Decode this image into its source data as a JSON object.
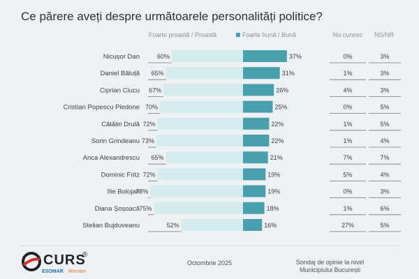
{
  "page": {
    "title": "Ce părere aveți despre următoarele personalități politice?",
    "legend_negative": "Foarte proastă / Proastă",
    "legend_positive": "Foarte bună / Bună",
    "col_unknown": "Nu cunosc",
    "col_nsnr": "NS/NR"
  },
  "colors": {
    "negative_bar": "#d6ebee",
    "positive_bar": "#4a9fae",
    "row_line": "#6e7680",
    "text": "#3a3f48"
  },
  "footer": {
    "date": "Octombrie 2025",
    "survey": "Sondaj de opinie la nivel Municipiului București",
    "logo": "CURS",
    "logo_registered": "®",
    "logo_sub": "ESOMAR",
    "logo_sub2": "Member"
  },
  "chart_data": {
    "type": "bar",
    "categories": [
      "Nicușor Dan",
      "Daniel Băluță",
      "Ciprian Ciucu",
      "Cristian Popescu Piedone",
      "Cătălin Drulă",
      "Sorin Grindeanu",
      "Anca Alexandrescu",
      "Dominic Fritz",
      "Ilie Bolojan",
      "Diana Șoșoacă",
      "Stelian Bujduveanu"
    ],
    "series": [
      {
        "name": "Foarte proastă / Proastă",
        "values": [
          60,
          65,
          67,
          70,
          72,
          73,
          65,
          72,
          78,
          75,
          52
        ]
      },
      {
        "name": "Foarte bună / Bună",
        "values": [
          37,
          31,
          26,
          25,
          22,
          22,
          21,
          19,
          19,
          18,
          16
        ]
      },
      {
        "name": "Nu cunosc",
        "values": [
          0,
          1,
          4,
          0,
          1,
          1,
          7,
          5,
          0,
          1,
          27
        ]
      },
      {
        "name": "NS/NR",
        "values": [
          3,
          3,
          3,
          5,
          5,
          4,
          7,
          4,
          3,
          6,
          5
        ]
      }
    ],
    "unit": "%"
  }
}
